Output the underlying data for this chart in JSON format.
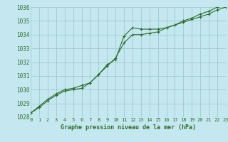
{
  "title": "Graphe pression niveau de la mer (hPa)",
  "background_color": "#c5e8f0",
  "grid_color": "#9fc8d2",
  "line_color": "#2d6e2d",
  "marker_color": "#2d6e2d",
  "hours": [
    0,
    1,
    2,
    3,
    4,
    5,
    6,
    7,
    8,
    9,
    10,
    11,
    12,
    13,
    14,
    15,
    16,
    17,
    18,
    19,
    20,
    21,
    22,
    23
  ],
  "series1": [
    1028.3,
    1028.7,
    1029.2,
    1029.6,
    1029.9,
    1030.0,
    1030.1,
    1030.5,
    1031.1,
    1031.8,
    1032.2,
    1033.9,
    1034.5,
    1034.4,
    1034.4,
    1034.4,
    1034.5,
    1034.7,
    1034.9,
    1035.1,
    1035.3,
    1035.5,
    1035.8,
    1036.0
  ],
  "series2": [
    1028.3,
    1028.8,
    1029.3,
    1029.7,
    1030.0,
    1030.1,
    1030.3,
    1030.5,
    1031.1,
    1031.7,
    1032.3,
    1033.4,
    1034.0,
    1034.0,
    1034.1,
    1034.2,
    1034.5,
    1034.7,
    1035.0,
    1035.2,
    1035.5,
    1035.7,
    1036.0,
    1036.1
  ],
  "ylim": [
    1028,
    1036
  ],
  "yticks": [
    1028,
    1029,
    1030,
    1031,
    1032,
    1033,
    1034,
    1035,
    1036
  ],
  "xlim": [
    0,
    23
  ],
  "xticks": [
    0,
    1,
    2,
    3,
    4,
    5,
    6,
    7,
    8,
    9,
    10,
    11,
    12,
    13,
    14,
    15,
    16,
    17,
    18,
    19,
    20,
    21,
    22,
    23
  ],
  "xlabel_fontsize": 6.0,
  "ytick_fontsize": 5.5,
  "xtick_fontsize": 5.0
}
